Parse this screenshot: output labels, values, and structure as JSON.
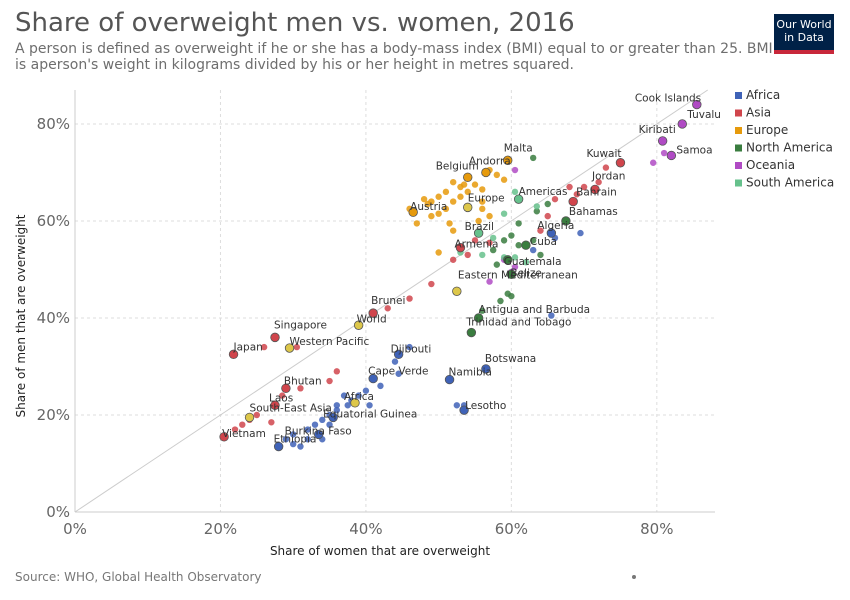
{
  "title": "Share of overweight men vs. women, 2016",
  "subtitle": "A person is defined as overweight if he or she has a body-mass index (BMI) equal to or greater than 25. BMI is aperson's weight in kilograms divided by his or her height in metres squared.",
  "logo_text": "Our World\nin Data",
  "source": "Source: WHO, Global Health Observatory",
  "colors": {
    "Africa": "#3f62b7",
    "Asia": "#d0454c",
    "Europe": "#e69a0c",
    "North America": "#3a7d3f",
    "Oceania": "#b04bc4",
    "South America": "#66c18c",
    "World": "#ddc74a",
    "reference_line": "#cccccc",
    "grid": "#dddddd"
  },
  "chart_data": {
    "type": "scatter",
    "title": "Share of overweight men vs. women, 2016",
    "xlabel": "Share of women that are overweight",
    "ylabel": "Share of men that are overweight",
    "xlim": [
      0,
      88
    ],
    "ylim": [
      0,
      87
    ],
    "x_ticks": [
      "0%",
      "20%",
      "40%",
      "60%",
      "80%"
    ],
    "y_ticks": [
      "0%",
      "20%",
      "40%",
      "60%",
      "80%"
    ],
    "grid": true,
    "reference_line": "y = x",
    "legend_position": "right",
    "legend": [
      "Africa",
      "Asia",
      "Europe",
      "North America",
      "Oceania",
      "South America"
    ],
    "labeled_points": [
      {
        "label": "Cook Islands",
        "x": 85.5,
        "y": 84.0,
        "region": "Oceania"
      },
      {
        "label": "Tuvalu",
        "x": 83.5,
        "y": 80.0,
        "region": "Oceania"
      },
      {
        "label": "Kiribati",
        "x": 80.8,
        "y": 76.5,
        "region": "Oceania"
      },
      {
        "label": "Samoa",
        "x": 82.0,
        "y": 73.5,
        "region": "Oceania"
      },
      {
        "label": "Kuwait",
        "x": 75.0,
        "y": 72.0,
        "region": "Asia"
      },
      {
        "label": "Jordan",
        "x": 71.5,
        "y": 66.5,
        "region": "Asia"
      },
      {
        "label": "Malta",
        "x": 59.5,
        "y": 72.5,
        "region": "Europe"
      },
      {
        "label": "Andorra",
        "x": 56.5,
        "y": 70.0,
        "region": "Europe"
      },
      {
        "label": "Belgium",
        "x": 54.0,
        "y": 69.0,
        "region": "Europe"
      },
      {
        "label": "Americas",
        "x": 61.0,
        "y": 64.5,
        "region": "South America"
      },
      {
        "label": "Bahrain",
        "x": 68.5,
        "y": 64.0,
        "region": "Asia"
      },
      {
        "label": "Europe",
        "x": 54.0,
        "y": 62.8,
        "region": "World"
      },
      {
        "label": "Austria",
        "x": 46.5,
        "y": 61.8,
        "region": "Europe"
      },
      {
        "label": "Bahamas",
        "x": 67.5,
        "y": 60.0,
        "region": "North America"
      },
      {
        "label": "Algeria",
        "x": 65.5,
        "y": 57.5,
        "region": "Africa"
      },
      {
        "label": "Brazil",
        "x": 55.5,
        "y": 57.5,
        "region": "South America"
      },
      {
        "label": "Cuba",
        "x": 62.0,
        "y": 55.0,
        "region": "North America"
      },
      {
        "label": "Armenia",
        "x": 53.0,
        "y": 54.5,
        "region": "Asia"
      },
      {
        "label": "Guatemala",
        "x": 59.5,
        "y": 52.0,
        "region": "North America"
      },
      {
        "label": "Belize",
        "x": 60.0,
        "y": 49.0,
        "region": "North America"
      },
      {
        "label": "Eastern Mediterranean",
        "x": 52.5,
        "y": 45.5,
        "region": "World"
      },
      {
        "label": "Antigua and Barbuda",
        "x": 55.5,
        "y": 40.0,
        "region": "North America"
      },
      {
        "label": "Trinidad and Tobago",
        "x": 54.5,
        "y": 37.0,
        "region": "North America"
      },
      {
        "label": "Brunei",
        "x": 41.0,
        "y": 41.0,
        "region": "Asia"
      },
      {
        "label": "World",
        "x": 39.0,
        "y": 38.5,
        "region": "World"
      },
      {
        "label": "Singapore",
        "x": 27.5,
        "y": 36.0,
        "region": "Asia"
      },
      {
        "label": "Western Pacific",
        "x": 29.5,
        "y": 33.8,
        "region": "World"
      },
      {
        "label": "Japan",
        "x": 21.8,
        "y": 32.5,
        "region": "Asia"
      },
      {
        "label": "Djibouti",
        "x": 44.5,
        "y": 32.5,
        "region": "Africa"
      },
      {
        "label": "Botswana",
        "x": 56.5,
        "y": 29.5,
        "region": "Africa"
      },
      {
        "label": "Cape Verde",
        "x": 41.0,
        "y": 27.5,
        "region": "Africa"
      },
      {
        "label": "Namibia",
        "x": 51.5,
        "y": 27.3,
        "region": "Africa"
      },
      {
        "label": "Bhutan",
        "x": 29.0,
        "y": 25.5,
        "region": "Asia"
      },
      {
        "label": "Africa",
        "x": 38.5,
        "y": 22.5,
        "region": "World"
      },
      {
        "label": "Laos",
        "x": 27.5,
        "y": 22.0,
        "region": "Asia"
      },
      {
        "label": "Lesotho",
        "x": 53.5,
        "y": 21.0,
        "region": "Africa"
      },
      {
        "label": "South-East Asia",
        "x": 24.0,
        "y": 19.5,
        "region": "World"
      },
      {
        "label": "Equatorial Guinea",
        "x": 35.5,
        "y": 19.5,
        "region": "Africa"
      },
      {
        "label": "Burkina Faso",
        "x": 33.5,
        "y": 16.0,
        "region": "Africa"
      },
      {
        "label": "Ethiopia",
        "x": 28.0,
        "y": 13.5,
        "region": "Africa"
      },
      {
        "label": "Vietnam",
        "x": 20.5,
        "y": 15.5,
        "region": "Asia"
      }
    ],
    "points": [
      {
        "x": 57,
        "y": 70.5,
        "region": "Europe"
      },
      {
        "x": 58,
        "y": 69.5,
        "region": "Europe"
      },
      {
        "x": 55,
        "y": 67.5,
        "region": "Europe"
      },
      {
        "x": 56,
        "y": 66.5,
        "region": "Europe"
      },
      {
        "x": 53,
        "y": 67,
        "region": "Europe"
      },
      {
        "x": 52,
        "y": 68,
        "region": "Europe"
      },
      {
        "x": 51,
        "y": 66,
        "region": "Europe"
      },
      {
        "x": 50,
        "y": 65,
        "region": "Europe"
      },
      {
        "x": 49,
        "y": 64,
        "region": "Europe"
      },
      {
        "x": 52,
        "y": 64,
        "region": "Europe"
      },
      {
        "x": 51,
        "y": 62.5,
        "region": "Europe"
      },
      {
        "x": 50,
        "y": 61.5,
        "region": "Europe"
      },
      {
        "x": 53,
        "y": 65,
        "region": "Europe"
      },
      {
        "x": 54,
        "y": 66,
        "region": "Europe"
      },
      {
        "x": 56,
        "y": 64,
        "region": "Europe"
      },
      {
        "x": 57,
        "y": 61,
        "region": "Europe"
      },
      {
        "x": 56,
        "y": 62.5,
        "region": "Europe"
      },
      {
        "x": 48,
        "y": 64.5,
        "region": "Europe"
      },
      {
        "x": 48.5,
        "y": 63.5,
        "region": "Europe"
      },
      {
        "x": 46,
        "y": 62.5,
        "region": "Europe"
      },
      {
        "x": 47,
        "y": 59.5,
        "region": "Europe"
      },
      {
        "x": 49,
        "y": 61,
        "region": "Europe"
      },
      {
        "x": 51.5,
        "y": 59.5,
        "region": "Europe"
      },
      {
        "x": 55.5,
        "y": 60,
        "region": "Europe"
      },
      {
        "x": 59,
        "y": 68.5,
        "region": "Europe"
      },
      {
        "x": 50,
        "y": 53.5,
        "region": "Europe"
      },
      {
        "x": 52,
        "y": 58,
        "region": "Europe"
      },
      {
        "x": 53.5,
        "y": 67.5,
        "region": "Europe"
      },
      {
        "x": 70,
        "y": 67,
        "region": "Asia"
      },
      {
        "x": 72,
        "y": 68,
        "region": "Asia"
      },
      {
        "x": 73,
        "y": 71,
        "region": "Asia"
      },
      {
        "x": 69,
        "y": 65.5,
        "region": "Asia"
      },
      {
        "x": 68,
        "y": 67,
        "region": "Asia"
      },
      {
        "x": 66,
        "y": 64.5,
        "region": "Asia"
      },
      {
        "x": 65,
        "y": 61,
        "region": "Asia"
      },
      {
        "x": 64,
        "y": 58,
        "region": "Asia"
      },
      {
        "x": 57,
        "y": 55.5,
        "region": "Asia"
      },
      {
        "x": 55,
        "y": 56,
        "region": "Asia"
      },
      {
        "x": 54,
        "y": 53,
        "region": "Asia"
      },
      {
        "x": 52,
        "y": 52,
        "region": "Asia"
      },
      {
        "x": 49,
        "y": 47,
        "region": "Asia"
      },
      {
        "x": 46,
        "y": 44,
        "region": "Asia"
      },
      {
        "x": 43,
        "y": 42,
        "region": "Asia"
      },
      {
        "x": 36,
        "y": 29,
        "region": "Asia"
      },
      {
        "x": 30.5,
        "y": 34,
        "region": "Asia"
      },
      {
        "x": 26,
        "y": 34,
        "region": "Asia"
      },
      {
        "x": 31,
        "y": 25.5,
        "region": "Asia"
      },
      {
        "x": 28.5,
        "y": 24,
        "region": "Asia"
      },
      {
        "x": 25,
        "y": 20,
        "region": "Asia"
      },
      {
        "x": 24,
        "y": 19,
        "region": "Asia"
      },
      {
        "x": 23,
        "y": 18,
        "region": "Asia"
      },
      {
        "x": 22,
        "y": 17,
        "region": "Asia"
      },
      {
        "x": 27,
        "y": 18.5,
        "region": "Asia"
      },
      {
        "x": 35,
        "y": 27,
        "region": "Asia"
      },
      {
        "x": 79.5,
        "y": 72,
        "region": "Oceania"
      },
      {
        "x": 81,
        "y": 74,
        "region": "Oceania"
      },
      {
        "x": 60.5,
        "y": 70.5,
        "region": "Oceania"
      },
      {
        "x": 59,
        "y": 52,
        "region": "Oceania"
      },
      {
        "x": 57,
        "y": 47.5,
        "region": "Oceania"
      },
      {
        "x": 60,
        "y": 49.5,
        "region": "Oceania"
      },
      {
        "x": 60.5,
        "y": 50.5,
        "region": "Oceania"
      },
      {
        "x": 63,
        "y": 73,
        "region": "North America"
      },
      {
        "x": 65,
        "y": 63.5,
        "region": "North America"
      },
      {
        "x": 63.5,
        "y": 62,
        "region": "North America"
      },
      {
        "x": 61,
        "y": 59.5,
        "region": "North America"
      },
      {
        "x": 60,
        "y": 57,
        "region": "North America"
      },
      {
        "x": 59,
        "y": 56,
        "region": "North America"
      },
      {
        "x": 57.5,
        "y": 54,
        "region": "North America"
      },
      {
        "x": 58,
        "y": 51,
        "region": "North America"
      },
      {
        "x": 61,
        "y": 55,
        "region": "North America"
      },
      {
        "x": 63,
        "y": 56,
        "region": "North America"
      },
      {
        "x": 64,
        "y": 53,
        "region": "North America"
      },
      {
        "x": 59.5,
        "y": 45,
        "region": "North America"
      },
      {
        "x": 58.5,
        "y": 43.5,
        "region": "North America"
      },
      {
        "x": 56,
        "y": 41.5,
        "region": "North America"
      },
      {
        "x": 60,
        "y": 44.5,
        "region": "North America"
      },
      {
        "x": 63.5,
        "y": 63,
        "region": "South America"
      },
      {
        "x": 60.5,
        "y": 66,
        "region": "South America"
      },
      {
        "x": 59,
        "y": 61.5,
        "region": "South America"
      },
      {
        "x": 57.5,
        "y": 56.5,
        "region": "South America"
      },
      {
        "x": 59,
        "y": 52.5,
        "region": "South America"
      },
      {
        "x": 62,
        "y": 51.5,
        "region": "South America"
      },
      {
        "x": 60.5,
        "y": 52.5,
        "region": "South America"
      },
      {
        "x": 53,
        "y": 53.5,
        "region": "South America"
      },
      {
        "x": 56,
        "y": 53,
        "region": "South America"
      },
      {
        "x": 69.5,
        "y": 57.5,
        "region": "Africa"
      },
      {
        "x": 66,
        "y": 56.5,
        "region": "Africa"
      },
      {
        "x": 63,
        "y": 54,
        "region": "Africa"
      },
      {
        "x": 46,
        "y": 34,
        "region": "Africa"
      },
      {
        "x": 44,
        "y": 31,
        "region": "Africa"
      },
      {
        "x": 42,
        "y": 26,
        "region": "Africa"
      },
      {
        "x": 44.5,
        "y": 28.5,
        "region": "Africa"
      },
      {
        "x": 65.5,
        "y": 40.5,
        "region": "Africa"
      },
      {
        "x": 52.5,
        "y": 22,
        "region": "Africa"
      },
      {
        "x": 53.5,
        "y": 22,
        "region": "Africa"
      },
      {
        "x": 40,
        "y": 25,
        "region": "Africa"
      },
      {
        "x": 39,
        "y": 24,
        "region": "Africa"
      },
      {
        "x": 37,
        "y": 24,
        "region": "Africa"
      },
      {
        "x": 37.5,
        "y": 22,
        "region": "Africa"
      },
      {
        "x": 36,
        "y": 21,
        "region": "Africa"
      },
      {
        "x": 35,
        "y": 20,
        "region": "Africa"
      },
      {
        "x": 34,
        "y": 19,
        "region": "Africa"
      },
      {
        "x": 35,
        "y": 18,
        "region": "Africa"
      },
      {
        "x": 33,
        "y": 18,
        "region": "Africa"
      },
      {
        "x": 32,
        "y": 17,
        "region": "Africa"
      },
      {
        "x": 30,
        "y": 16,
        "region": "Africa"
      },
      {
        "x": 29,
        "y": 15,
        "region": "Africa"
      },
      {
        "x": 30,
        "y": 14,
        "region": "Africa"
      },
      {
        "x": 31,
        "y": 13.5,
        "region": "Africa"
      },
      {
        "x": 32,
        "y": 15,
        "region": "Africa"
      },
      {
        "x": 34,
        "y": 15,
        "region": "Africa"
      },
      {
        "x": 36,
        "y": 22,
        "region": "Africa"
      },
      {
        "x": 38,
        "y": 23,
        "region": "Africa"
      },
      {
        "x": 40.5,
        "y": 22,
        "region": "Africa"
      }
    ]
  }
}
